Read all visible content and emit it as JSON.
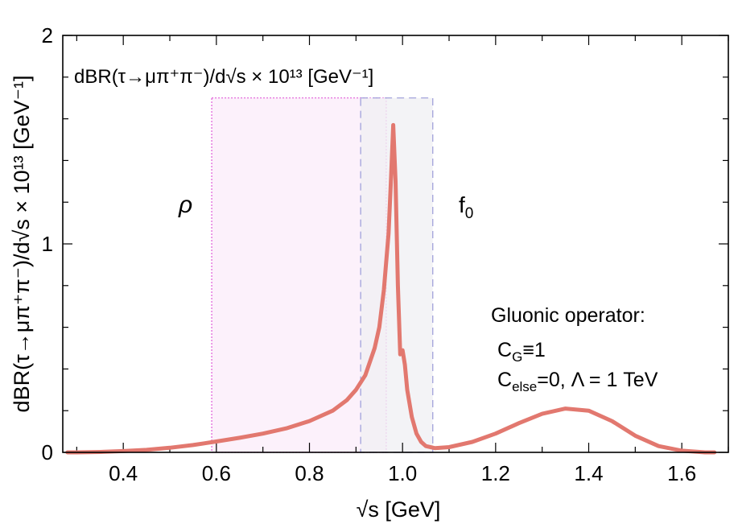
{
  "chart_data": {
    "type": "line",
    "title": "dBR(τ→μπ⁺π⁻)/d√s × 10¹³ [GeV⁻¹]",
    "xlabel": "√s [GeV]",
    "ylabel": "dBR(τ→μπ⁺π⁻)/d√s × 10¹³ [GeV⁻¹]",
    "xlim": [
      0.27,
      1.7
    ],
    "ylim": [
      0,
      2
    ],
    "x_ticks": [
      0.4,
      0.6,
      0.8,
      1.0,
      1.2,
      1.4,
      1.6
    ],
    "x_tick_labels": [
      "0.4",
      "0.6",
      "0.8",
      "1.0",
      "1.2",
      "1.4",
      "1.6"
    ],
    "y_ticks": [
      0,
      1,
      2
    ],
    "y_tick_labels": [
      "0",
      "1",
      "2"
    ],
    "grid": false,
    "series": [
      {
        "name": "Gluonic operator",
        "color": "#e2786f",
        "x": [
          0.28,
          0.3,
          0.35,
          0.4,
          0.45,
          0.5,
          0.55,
          0.6,
          0.65,
          0.7,
          0.75,
          0.8,
          0.85,
          0.88,
          0.9,
          0.92,
          0.94,
          0.95,
          0.96,
          0.97,
          0.975,
          0.98,
          0.985,
          0.99,
          0.995,
          1.0,
          1.005,
          1.01,
          1.02,
          1.03,
          1.04,
          1.05,
          1.07,
          1.1,
          1.15,
          1.2,
          1.25,
          1.3,
          1.35,
          1.4,
          1.45,
          1.5,
          1.55,
          1.6,
          1.65,
          1.67
        ],
        "values": [
          0.0,
          0.0,
          0.002,
          0.006,
          0.012,
          0.022,
          0.035,
          0.052,
          0.07,
          0.09,
          0.115,
          0.15,
          0.2,
          0.25,
          0.3,
          0.37,
          0.5,
          0.6,
          0.78,
          1.05,
          1.3,
          1.57,
          1.3,
          0.8,
          0.47,
          0.49,
          0.42,
          0.3,
          0.17,
          0.09,
          0.05,
          0.03,
          0.02,
          0.025,
          0.05,
          0.09,
          0.14,
          0.185,
          0.21,
          0.2,
          0.15,
          0.08,
          0.03,
          0.008,
          0.0,
          0.0
        ]
      }
    ],
    "regions": [
      {
        "name": "rho-region",
        "x_range": [
          0.59,
          0.965
        ],
        "y_top": 1.7,
        "color": "#e05ad8",
        "fill": "#fbeefa",
        "line_style": "dotted"
      },
      {
        "name": "f0-region",
        "x_range": [
          0.91,
          1.065
        ],
        "y_top": 1.7,
        "color": "#9a9ad8",
        "fill": "#f0f0f4",
        "line_style": "dashed"
      }
    ],
    "annotations": {
      "rho_label": "ρ",
      "f0_label": "f",
      "f0_sub": "0",
      "legend_line1": "Gluonic operator:",
      "legend_line2_main": "C",
      "legend_line2_sub": "G",
      "legend_line2_rest": "≡1",
      "legend_line3_main": "C",
      "legend_line3_sub": "else",
      "legend_line3_rest": "=0, Λ = 1 TeV"
    }
  }
}
